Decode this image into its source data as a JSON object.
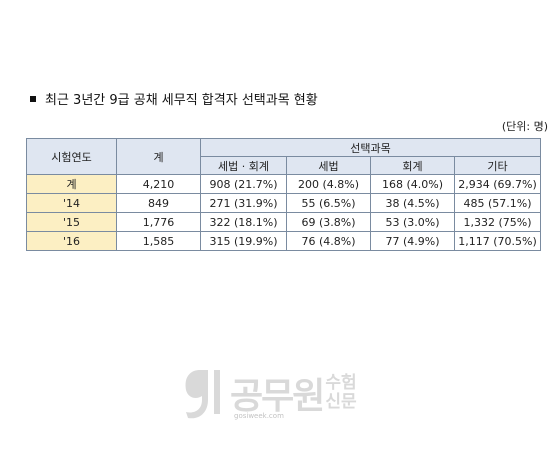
{
  "title": "최근 3년간 9급 공채 세무직 합격자 선택과목 현황",
  "unit": "(단위: 명)",
  "table": {
    "headers": {
      "year": "시험연도",
      "total": "계",
      "group": "선택과목",
      "subjects": [
        "세법 · 회계",
        "세법",
        "회계",
        "기타"
      ]
    },
    "rows": [
      {
        "year": "계",
        "total": "4,210",
        "cells": [
          "908 (21.7%)",
          "200 (4.8%)",
          "168 (4.0%)",
          "2,934 (69.7%)"
        ]
      },
      {
        "year": "'14",
        "total": "849",
        "cells": [
          "271 (31.9%)",
          "55 (6.5%)",
          "38 (4.5%)",
          "485 (57.1%)"
        ]
      },
      {
        "year": "'15",
        "total": "1,776",
        "cells": [
          "322 (18.1%)",
          "69 (3.8%)",
          "53 (3.0%)",
          "1,332 (75%)"
        ]
      },
      {
        "year": "'16",
        "total": "1,585",
        "cells": [
          "315 (19.9%)",
          "76 (4.8%)",
          "77 (4.9%)",
          "1,117 (70.5%)"
        ]
      }
    ]
  },
  "watermark": {
    "main": "공무원",
    "side_top": "수험",
    "side_bottom": "신문",
    "url": "gosiweek.com"
  }
}
